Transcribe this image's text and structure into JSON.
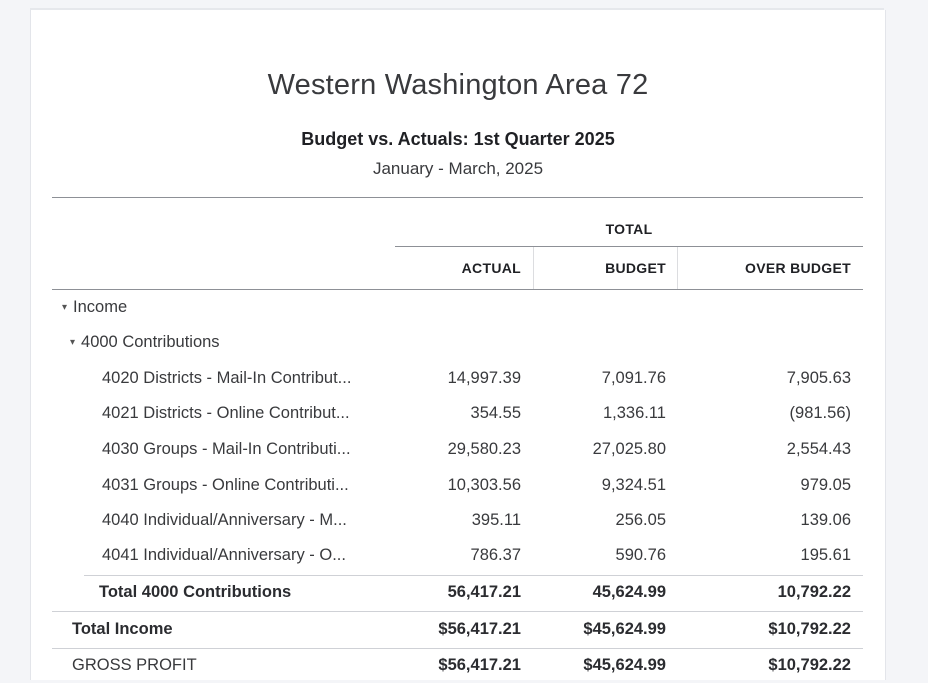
{
  "report": {
    "company": "Western Washington Area 72",
    "title": "Budget vs. Actuals: 1st Quarter 2025",
    "period": "January - March, 2025"
  },
  "columns": {
    "group": "TOTAL",
    "actual": "ACTUAL",
    "budget": "BUDGET",
    "over": "OVER BUDGET"
  },
  "sections": {
    "income": "Income",
    "contributions": "4000 Contributions",
    "caret": "▾"
  },
  "rows": [
    {
      "label": "4020 Districts - Mail-In Contribut...",
      "actual": "14,997.39",
      "budget": "7,091.76",
      "over": "7,905.63"
    },
    {
      "label": "4021 Districts - Online Contribut...",
      "actual": "354.55",
      "budget": "1,336.11",
      "over": "(981.56)"
    },
    {
      "label": "4030 Groups - Mail-In Contributi...",
      "actual": "29,580.23",
      "budget": "27,025.80",
      "over": "2,554.43"
    },
    {
      "label": "4031 Groups - Online Contributi...",
      "actual": "10,303.56",
      "budget": "9,324.51",
      "over": "979.05"
    },
    {
      "label": "4040 Individual/Anniversary - M...",
      "actual": "395.11",
      "budget": "256.05",
      "over": "139.06"
    },
    {
      "label": "4041 Individual/Anniversary - O...",
      "actual": "786.37",
      "budget": "590.76",
      "over": "195.61"
    }
  ],
  "totals": {
    "contributions": {
      "label": "Total 4000 Contributions",
      "actual": "56,417.21",
      "budget": "45,624.99",
      "over": "10,792.22"
    },
    "income": {
      "label": "Total Income",
      "actual": "$56,417.21",
      "budget": "$45,624.99",
      "over": "$10,792.22"
    },
    "gross_profit": {
      "label": "GROSS PROFIT",
      "actual": "$56,417.21",
      "budget": "$45,624.99",
      "over": "$10,792.22"
    }
  }
}
